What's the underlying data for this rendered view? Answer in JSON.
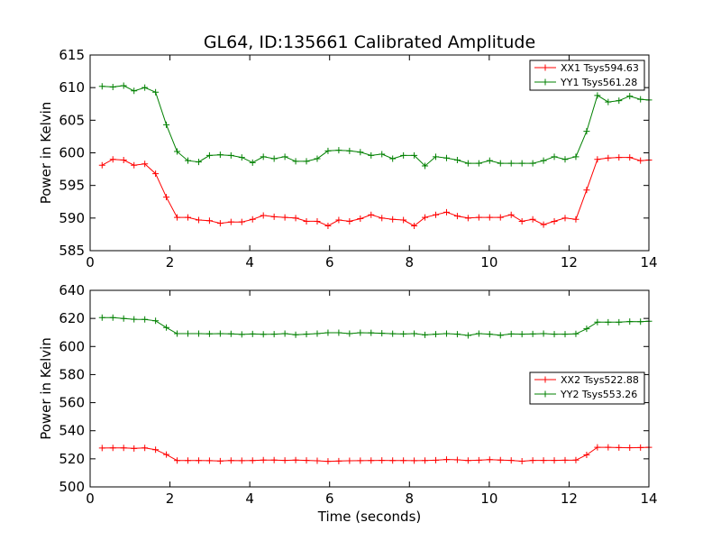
{
  "figure": {
    "title": "GL64, ID:135661 Calibrated Amplitude"
  },
  "chart_data": [
    {
      "type": "line",
      "xlabel": "",
      "ylabel": "Power in Kelvin",
      "xlim": [
        0,
        14
      ],
      "ylim": [
        585,
        615
      ],
      "xticks": [
        0,
        2,
        4,
        6,
        8,
        10,
        12,
        14
      ],
      "yticks": [
        585,
        590,
        595,
        600,
        605,
        610,
        615
      ],
      "legend_position": "top-right",
      "grid": false,
      "x": [
        0.3,
        0.57,
        0.84,
        1.1,
        1.37,
        1.64,
        1.91,
        2.18,
        2.45,
        2.72,
        2.99,
        3.26,
        3.53,
        3.8,
        4.07,
        4.34,
        4.61,
        4.88,
        5.15,
        5.42,
        5.69,
        5.96,
        6.23,
        6.5,
        6.77,
        7.04,
        7.31,
        7.58,
        7.85,
        8.12,
        8.39,
        8.66,
        8.93,
        9.2,
        9.47,
        9.74,
        10.01,
        10.28,
        10.55,
        10.82,
        11.09,
        11.36,
        11.63,
        11.9,
        12.17,
        12.44,
        12.71,
        12.98,
        13.25,
        13.52,
        13.79,
        14.0
      ],
      "series": [
        {
          "name": "XX1 Tsys594.63",
          "color": "#ff0000",
          "values": [
            598.1,
            599.0,
            598.9,
            598.1,
            598.3,
            596.8,
            593.2,
            590.1,
            590.1,
            589.7,
            589.6,
            589.2,
            589.4,
            589.4,
            589.8,
            590.4,
            590.2,
            590.1,
            590.0,
            589.5,
            589.5,
            588.8,
            589.7,
            589.5,
            589.9,
            590.5,
            590.0,
            589.8,
            589.7,
            588.8,
            590.1,
            590.5,
            590.9,
            590.3,
            590.0,
            590.1,
            590.1,
            590.1,
            590.5,
            589.5,
            589.8,
            589.0,
            589.5,
            590.0,
            589.8,
            594.3,
            599.0,
            599.2,
            599.3,
            599.3,
            598.8,
            598.9
          ]
        },
        {
          "name": "YY1 Tsys561.28",
          "color": "#008000",
          "values": [
            610.2,
            610.1,
            610.3,
            609.5,
            610.0,
            609.3,
            604.3,
            600.2,
            598.8,
            598.6,
            599.6,
            599.7,
            599.6,
            599.3,
            598.5,
            599.4,
            599.1,
            599.4,
            598.7,
            598.7,
            599.1,
            600.3,
            600.4,
            600.3,
            600.1,
            599.6,
            599.8,
            599.1,
            599.6,
            599.6,
            598.0,
            599.4,
            599.2,
            598.9,
            598.4,
            598.4,
            598.8,
            598.4,
            598.4,
            598.4,
            598.4,
            598.8,
            599.4,
            599.0,
            599.4,
            603.3,
            608.8,
            607.8,
            608.0,
            608.7,
            608.2,
            608.1
          ]
        }
      ]
    },
    {
      "type": "line",
      "xlabel": "Time (seconds)",
      "ylabel": "Power in Kelvin",
      "xlim": [
        0,
        14
      ],
      "ylim": [
        500,
        640
      ],
      "xticks": [
        0,
        2,
        4,
        6,
        8,
        10,
        12,
        14
      ],
      "yticks": [
        500,
        520,
        540,
        560,
        580,
        600,
        620,
        640
      ],
      "legend_position": "center-right",
      "grid": false,
      "x": [
        0.3,
        0.57,
        0.84,
        1.1,
        1.37,
        1.64,
        1.91,
        2.18,
        2.45,
        2.72,
        2.99,
        3.26,
        3.53,
        3.8,
        4.07,
        4.34,
        4.61,
        4.88,
        5.15,
        5.42,
        5.69,
        5.96,
        6.23,
        6.5,
        6.77,
        7.04,
        7.31,
        7.58,
        7.85,
        8.12,
        8.39,
        8.66,
        8.93,
        9.2,
        9.47,
        9.74,
        10.01,
        10.28,
        10.55,
        10.82,
        11.09,
        11.36,
        11.63,
        11.9,
        12.17,
        12.44,
        12.71,
        12.98,
        13.25,
        13.52,
        13.79,
        14.0
      ],
      "series": [
        {
          "name": "XX2 Tsys522.88",
          "color": "#ff0000",
          "values": [
            527.7,
            527.8,
            527.8,
            527.4,
            527.8,
            526.5,
            523.0,
            518.8,
            518.8,
            518.8,
            518.7,
            518.4,
            518.8,
            518.7,
            518.8,
            519.1,
            519.1,
            518.9,
            519.1,
            518.9,
            518.6,
            518.2,
            518.4,
            518.6,
            518.7,
            518.8,
            518.9,
            518.8,
            518.8,
            518.7,
            518.8,
            519.0,
            519.5,
            519.3,
            518.8,
            519.0,
            519.4,
            519.1,
            518.9,
            518.3,
            518.9,
            518.9,
            518.9,
            519.0,
            519.1,
            522.8,
            528.2,
            528.2,
            528.0,
            527.9,
            528.0,
            528.2
          ]
        },
        {
          "name": "YY2 Tsys553.26",
          "color": "#008000",
          "values": [
            620.6,
            620.6,
            619.9,
            619.4,
            619.3,
            618.3,
            613.5,
            609.2,
            609.2,
            609.2,
            609.0,
            609.2,
            609.0,
            608.6,
            608.9,
            608.7,
            608.8,
            609.2,
            608.4,
            608.8,
            609.2,
            609.8,
            609.8,
            609.2,
            609.8,
            609.7,
            609.4,
            609.1,
            608.9,
            609.2,
            608.3,
            608.8,
            609.2,
            608.8,
            607.9,
            609.2,
            608.8,
            608.0,
            608.9,
            608.8,
            608.9,
            609.2,
            608.8,
            608.8,
            609.0,
            612.6,
            617.4,
            617.3,
            617.3,
            617.8,
            617.7,
            618.0
          ]
        }
      ]
    }
  ]
}
